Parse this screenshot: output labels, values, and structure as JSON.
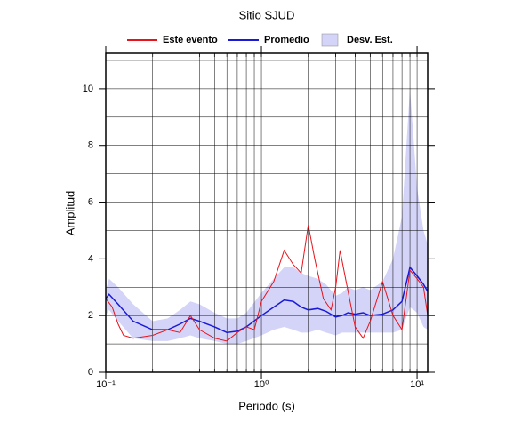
{
  "chart_data": {
    "type": "line",
    "title": "Sitio SJUD",
    "x_label": "Periodo (s)",
    "y_label": "Amplitud",
    "xscale": "log",
    "xlim": [
      0.1,
      11.7
    ],
    "ylim": [
      0,
      11.25
    ],
    "grid": true,
    "xticks": [
      {
        "value": 0.1,
        "label": "10⁻¹"
      },
      {
        "value": 1,
        "label": "10⁰"
      },
      {
        "value": 10,
        "label": "10¹"
      }
    ],
    "yticks": [
      0,
      2,
      4,
      6,
      8,
      10
    ],
    "series": [
      {
        "name": "Este evento",
        "color": "#e8141b",
        "x": [
          0.1,
          0.11,
          0.12,
          0.13,
          0.15,
          0.2,
          0.25,
          0.3,
          0.35,
          0.4,
          0.5,
          0.6,
          0.7,
          0.8,
          0.9,
          1.0,
          1.2,
          1.4,
          1.6,
          1.8,
          2.0,
          2.2,
          2.5,
          2.8,
          3.0,
          3.2,
          3.5,
          4.0,
          4.5,
          5.0,
          6.0,
          7.0,
          8.0,
          9.0,
          10,
          11,
          11.7
        ],
        "values": [
          2.6,
          2.3,
          1.7,
          1.3,
          1.2,
          1.3,
          1.5,
          1.4,
          2.0,
          1.5,
          1.2,
          1.1,
          1.4,
          1.6,
          1.5,
          2.5,
          3.2,
          4.3,
          3.8,
          3.5,
          5.2,
          4.0,
          2.6,
          2.2,
          3.0,
          4.3,
          3.2,
          1.6,
          1.2,
          1.8,
          3.2,
          2.0,
          1.5,
          3.6,
          3.3,
          3.0,
          2.0
        ]
      },
      {
        "name": "Promedio",
        "color": "#1a1ad6",
        "x": [
          0.1,
          0.105,
          0.12,
          0.15,
          0.2,
          0.25,
          0.3,
          0.35,
          0.4,
          0.5,
          0.6,
          0.7,
          0.8,
          1.0,
          1.2,
          1.4,
          1.6,
          1.8,
          2.0,
          2.3,
          2.6,
          3.0,
          3.3,
          3.6,
          4.0,
          4.5,
          5.0,
          6.0,
          7.0,
          8.0,
          9.0,
          10,
          11,
          11.7
        ],
        "values": [
          2.6,
          2.75,
          2.4,
          1.8,
          1.5,
          1.5,
          1.7,
          1.9,
          1.8,
          1.6,
          1.4,
          1.45,
          1.6,
          2.0,
          2.3,
          2.55,
          2.5,
          2.3,
          2.2,
          2.25,
          2.15,
          1.95,
          2.0,
          2.1,
          2.05,
          2.1,
          2.0,
          2.05,
          2.2,
          2.5,
          3.7,
          3.4,
          3.1,
          2.85
        ]
      },
      {
        "name": "Desv. Est.",
        "color": "#d4d4f8",
        "x": [
          0.1,
          0.105,
          0.12,
          0.15,
          0.2,
          0.25,
          0.3,
          0.35,
          0.4,
          0.5,
          0.6,
          0.7,
          0.8,
          1.0,
          1.2,
          1.4,
          1.6,
          1.8,
          2.0,
          2.3,
          2.6,
          3.0,
          3.3,
          3.6,
          4.0,
          4.5,
          5.0,
          6.0,
          7.0,
          8.0,
          9.0,
          10,
          11,
          11.7
        ],
        "lower": [
          2.0,
          2.2,
          1.8,
          1.2,
          1.1,
          1.1,
          1.2,
          1.3,
          1.2,
          1.1,
          1.0,
          1.0,
          1.1,
          1.3,
          1.5,
          1.6,
          1.5,
          1.4,
          1.4,
          1.5,
          1.4,
          1.3,
          1.4,
          1.4,
          1.4,
          1.4,
          1.4,
          1.4,
          1.4,
          1.5,
          2.3,
          2.1,
          1.6,
          1.5
        ],
        "upper": [
          2.9,
          3.3,
          3.0,
          2.4,
          1.8,
          1.9,
          2.2,
          2.5,
          2.4,
          2.1,
          1.9,
          1.9,
          2.1,
          2.8,
          3.3,
          3.7,
          3.7,
          3.5,
          3.4,
          3.3,
          3.1,
          2.7,
          2.8,
          3.0,
          2.9,
          3.0,
          2.9,
          3.2,
          4.0,
          5.5,
          10.0,
          6.5,
          5.0,
          4.5
        ]
      }
    ]
  }
}
